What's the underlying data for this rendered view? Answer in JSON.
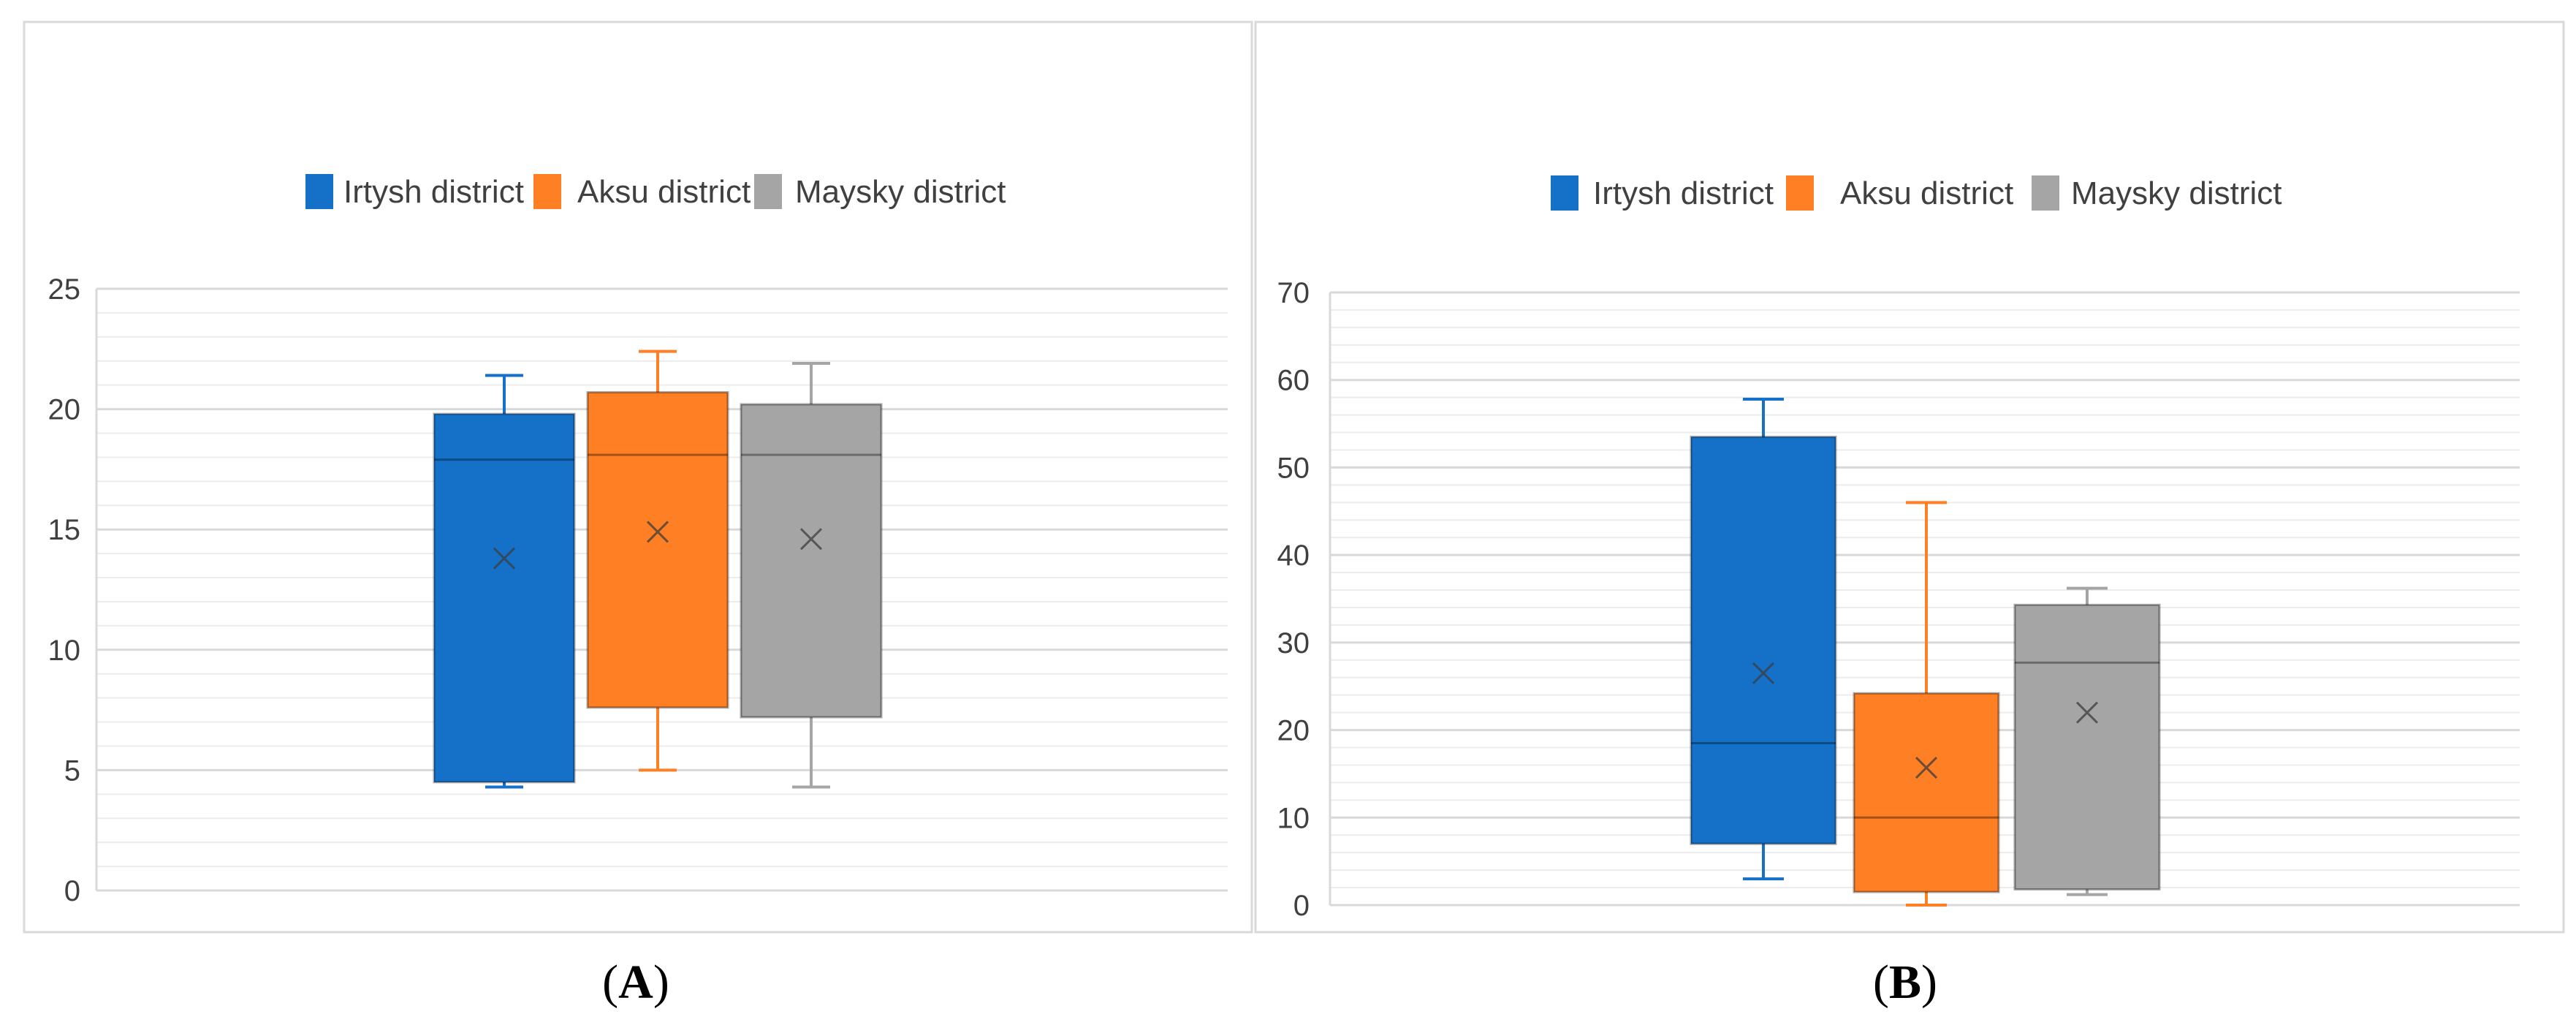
{
  "colors": {
    "irtysh": "#1570C8",
    "aksu": "#FF7F24",
    "maysky": "#A5A5A5",
    "gridline_major": "#D9D9D9",
    "gridline_minor": "#ECECEC",
    "panel_border": "#D9D9D9"
  },
  "chart_data": [
    {
      "type": "box",
      "panel_label": "A",
      "legend_placement": "top",
      "legend": [
        "Irtysh district",
        "Aksu district",
        "Maysky district"
      ],
      "ylim": [
        0,
        25
      ],
      "yticks": [
        "0",
        "5",
        "10",
        "15",
        "20",
        "25"
      ],
      "grid": true,
      "series": [
        {
          "name": "Irtysh district",
          "min": 4.3,
          "q1": 4.5,
          "median": 17.9,
          "q3": 19.8,
          "max": 21.4,
          "mean": 13.8
        },
        {
          "name": "Aksu district",
          "min": 5.0,
          "q1": 7.6,
          "median": 18.1,
          "q3": 20.7,
          "max": 22.4,
          "mean": 14.9
        },
        {
          "name": "Maysky district",
          "min": 4.3,
          "q1": 7.2,
          "median": 18.1,
          "q3": 20.2,
          "max": 21.9,
          "mean": 14.6
        }
      ]
    },
    {
      "type": "box",
      "panel_label": "B",
      "legend_placement": "top",
      "legend": [
        "Irtysh district",
        "Aksu district",
        "Maysky district"
      ],
      "ylim": [
        0,
        70
      ],
      "yticks": [
        "0",
        "10",
        "20",
        "30",
        "40",
        "50",
        "60",
        "70"
      ],
      "grid": true,
      "series": [
        {
          "name": "Irtysh district",
          "min": 3.0,
          "q1": 7.0,
          "median": 18.5,
          "q3": 53.5,
          "max": 57.8,
          "mean": 26.5
        },
        {
          "name": "Aksu district",
          "min": 0.0,
          "q1": 1.5,
          "median": 10.0,
          "q3": 24.2,
          "max": 46.0,
          "mean": 15.7
        },
        {
          "name": "Maysky district",
          "min": 1.2,
          "q1": 1.8,
          "median": 27.7,
          "q3": 34.3,
          "max": 36.2,
          "mean": 22.0
        }
      ]
    }
  ]
}
